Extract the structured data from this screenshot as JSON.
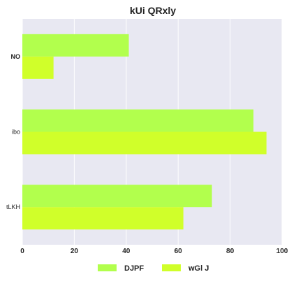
{
  "chart_data": {
    "type": "bar",
    "orientation": "horizontal",
    "title": "kUi QRxly",
    "categories": [
      "NO",
      "ibo",
      "tLKH"
    ],
    "series": [
      {
        "name": "DJPF",
        "color": "#b2ff4d",
        "values": [
          41,
          89,
          73
        ]
      },
      {
        "name": "wGl J",
        "color": "#d0ff2a",
        "values": [
          12,
          94,
          62
        ]
      }
    ],
    "xlim": [
      0,
      100
    ],
    "xticks": [
      "0",
      "20",
      "40",
      "60",
      "80",
      "100"
    ],
    "xlabel": "",
    "ylabel": "",
    "grid": true,
    "legend_position": "bottom",
    "background": "#e8e8f2"
  }
}
